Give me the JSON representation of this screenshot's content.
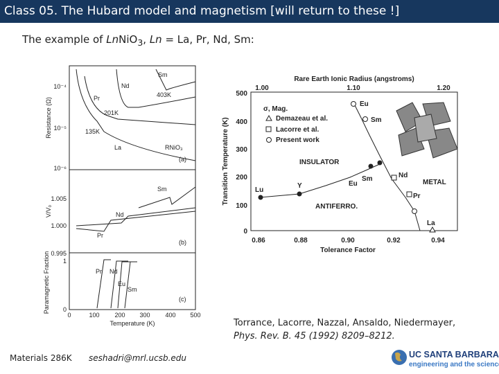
{
  "header": {
    "title": "Class 05. The Hubard model and magnetism [will return to these !]"
  },
  "intro": {
    "parts": [
      "The example of ",
      "Ln",
      "NiO",
      "3",
      ", ",
      "Ln",
      " = La, Pr, Nd, Sm:"
    ]
  },
  "figure_left": {
    "x_ticks": [
      "0",
      "100",
      "200",
      "300",
      "400",
      "500"
    ],
    "x_label": "Temperature (K)",
    "panel_a": {
      "y_ticks": [
        "10⁻⁴",
        "10⁻⁵",
        "10⁻⁶"
      ],
      "y_label": "Resistance (Ω)",
      "labels": [
        "Sm",
        "Nd",
        "Pr",
        "403K",
        "201K",
        "135K",
        "La",
        "RNiO₃",
        "(a)"
      ]
    },
    "panel_b": {
      "y_ticks": [
        "1.005",
        "1.000",
        "0.995"
      ],
      "y_label": "V/V₀",
      "labels": [
        "Sm",
        "Nd",
        "Pr",
        "(b)"
      ]
    },
    "panel_c": {
      "y_ticks": [
        "1",
        "0"
      ],
      "y_label": "Paramagnetic Fraction",
      "labels": [
        "Pr",
        "Nd",
        "Eu",
        "Sm",
        "(c)"
      ]
    }
  },
  "figure_right": {
    "top_label": "Rare Earth Ionic Radius (angstroms)",
    "top_ticks": [
      "1.00",
      "1.10",
      "1.20"
    ],
    "y_ticks": [
      "500",
      "400",
      "300",
      "200",
      "100",
      "0"
    ],
    "y_label": "Transition Temperature (K)",
    "x_ticks": [
      "0.86",
      "0.88",
      "0.90",
      "0.92",
      "0.94"
    ],
    "x_label": "Tolerance Factor",
    "legend": [
      "σ, Mag.",
      "Demazeau et al.",
      "Lacorre et al.",
      "Present work"
    ],
    "regions": [
      "INSULATOR",
      "METAL",
      "ANTIFERRO."
    ],
    "points": [
      "Eu",
      "Sm",
      "Nd",
      "Sm",
      "Eu",
      "Y",
      "Lu",
      "Pr",
      "La"
    ]
  },
  "citation": {
    "line1": "Torrance, Lacorre, Nazzal, Ansaldo, Niedermayer,",
    "line2": "Phys. Rev. B. 45 (1992) 8209–8212."
  },
  "footer": {
    "course": "Materials 286K",
    "email": "seshadri@mrl.ucsb.edu",
    "logo_title": "UC SANTA BARBARA",
    "logo_subtitle": "engineering and the sciences"
  }
}
